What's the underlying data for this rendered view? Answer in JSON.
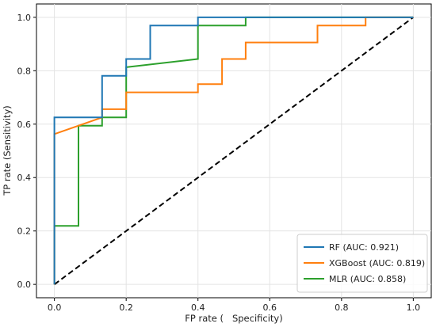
{
  "chart_data": {
    "type": "line",
    "xlabel": "FP rate (   Specificity)",
    "ylabel": "TP rate (Sensitivity)",
    "xlim": [
      -0.05,
      1.05
    ],
    "ylim": [
      -0.05,
      1.05
    ],
    "xticks": [
      "0.0",
      "0.2",
      "0.4",
      "0.6",
      "0.8",
      "1.0"
    ],
    "yticks": [
      "0.0",
      "0.2",
      "0.4",
      "0.6",
      "0.8",
      "1.0"
    ],
    "xtick_values": [
      0,
      0.2,
      0.4,
      0.6,
      0.8,
      1.0
    ],
    "ytick_values": [
      0,
      0.2,
      0.4,
      0.6,
      0.8,
      1.0
    ],
    "grid": true,
    "legend_position": "lower-right",
    "series": [
      {
        "name": "RF (AUC: 0.921)",
        "color": "#1f77b4",
        "x": [
          0,
          0,
          0.067,
          0.133,
          0.133,
          0.2,
          0.2,
          0.267,
          0.267,
          0.4,
          0.4,
          1.0
        ],
        "y": [
          0,
          0.625,
          0.625,
          0.625,
          0.781,
          0.781,
          0.844,
          0.844,
          0.969,
          0.969,
          1.0,
          1.0
        ]
      },
      {
        "name": "XGBoost (AUC: 0.819)",
        "color": "#ff7f0e",
        "x": [
          0,
          0,
          0.133,
          0.133,
          0.2,
          0.2,
          0.4,
          0.4,
          0.467,
          0.467,
          0.533,
          0.533,
          0.733,
          0.733,
          0.867,
          0.867,
          1.0
        ],
        "y": [
          0,
          0.563,
          0.625,
          0.656,
          0.656,
          0.719,
          0.719,
          0.75,
          0.75,
          0.844,
          0.844,
          0.906,
          0.906,
          0.969,
          0.969,
          1.0,
          1.0
        ]
      },
      {
        "name": "MLR (AUC: 0.858)",
        "color": "#2ca02c",
        "x": [
          0,
          0,
          0.067,
          0.067,
          0.133,
          0.133,
          0.2,
          0.2,
          0.4,
          0.4,
          0.533,
          0.533,
          1.0
        ],
        "y": [
          0,
          0.219,
          0.219,
          0.594,
          0.594,
          0.625,
          0.625,
          0.813,
          0.844,
          0.969,
          0.969,
          1.0,
          1.0
        ]
      }
    ],
    "reference_line": {
      "x": [
        0,
        1
      ],
      "y": [
        0,
        1
      ],
      "color": "#000000",
      "style": "dashed"
    }
  }
}
